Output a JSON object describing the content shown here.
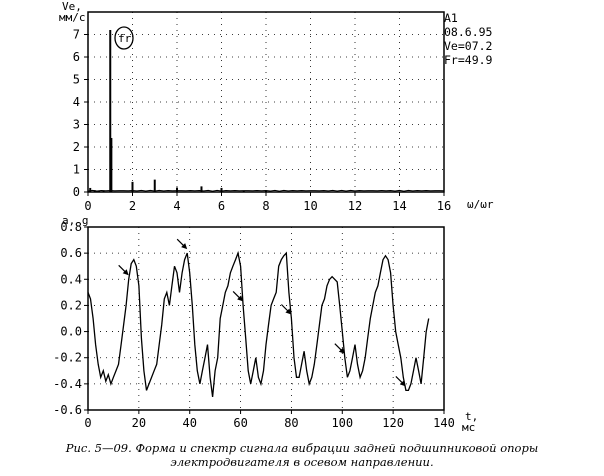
{
  "chart_data": [
    {
      "type": "bar",
      "title": "",
      "ylabel": "Ve, мм/с",
      "xlabel": "ω/ωr",
      "ylim": [
        0,
        8
      ],
      "xlim": [
        0,
        16
      ],
      "grid": true,
      "xticks": [
        "0",
        "2",
        "4",
        "6",
        "8",
        "10",
        "12",
        "14",
        "16"
      ],
      "yticks": [
        "0",
        "1",
        "2",
        "3",
        "4",
        "5",
        "6",
        "7"
      ],
      "x": [
        0.1,
        0.3,
        0.5,
        0.7,
        1.0,
        1.05,
        2.0,
        3.0,
        4.0,
        5.1,
        6.0,
        7.0,
        8.0
      ],
      "values": [
        0.18,
        0.08,
        0.05,
        0.06,
        7.2,
        2.4,
        0.45,
        0.55,
        0.2,
        0.25,
        0.18,
        0.05,
        0.05
      ],
      "peak_label": "fr",
      "info": {
        "id": "A1",
        "date": "08.6.95",
        "ve": "Ve=07.2",
        "fr": "Fr=49.9"
      }
    },
    {
      "type": "line",
      "title": "",
      "ylabel": "a, g",
      "xlabel": "t, мс",
      "ylim": [
        -0.6,
        0.8
      ],
      "xlim": [
        0,
        140
      ],
      "grid": true,
      "xticks": [
        "0",
        "20",
        "40",
        "60",
        "80",
        "100",
        "120",
        "140"
      ],
      "yticks": [
        "0.8",
        "0.6",
        "0.4",
        "0.2",
        "0.0",
        "-0.2",
        "-0.4",
        "-0.6"
      ],
      "x": [
        0,
        1,
        2,
        3,
        4,
        5,
        6,
        7,
        8,
        9,
        10,
        11,
        12,
        13,
        14,
        15,
        16,
        17,
        18,
        19,
        20,
        21,
        22,
        23,
        24,
        25,
        26,
        27,
        28,
        29,
        30,
        31,
        32,
        33,
        34,
        35,
        36,
        37,
        38,
        39,
        40,
        41,
        42,
        43,
        44,
        45,
        46,
        47,
        48,
        49,
        50,
        51,
        52,
        53,
        54,
        55,
        56,
        57,
        58,
        59,
        60,
        61,
        62,
        63,
        64,
        65,
        66,
        67,
        68,
        69,
        70,
        71,
        72,
        73,
        74,
        75,
        76,
        77,
        78,
        79,
        80,
        81,
        82,
        83,
        84,
        85,
        86,
        87,
        88,
        89,
        90,
        91,
        92,
        93,
        94,
        95,
        96,
        97,
        98,
        99,
        100,
        101,
        102,
        103,
        104,
        105,
        106,
        107,
        108,
        109,
        110,
        111,
        112,
        113,
        114,
        115,
        116,
        117,
        118,
        119,
        120,
        121,
        122,
        123,
        124,
        125,
        126,
        127,
        128,
        129,
        130,
        131,
        132,
        133,
        134
      ],
      "series": [
        {
          "values": [
            0.3,
            0.25,
            0.1,
            -0.1,
            -0.25,
            -0.35,
            -0.3,
            -0.38,
            -0.33,
            -0.4,
            -0.35,
            -0.3,
            -0.25,
            -0.1,
            0.05,
            0.2,
            0.4,
            0.52,
            0.55,
            0.5,
            0.35,
            -0.05,
            -0.3,
            -0.45,
            -0.4,
            -0.35,
            -0.3,
            -0.25,
            -0.1,
            0.05,
            0.25,
            0.3,
            0.2,
            0.35,
            0.5,
            0.45,
            0.3,
            0.45,
            0.55,
            0.6,
            0.45,
            0.2,
            -0.1,
            -0.3,
            -0.4,
            -0.3,
            -0.2,
            -0.1,
            -0.35,
            -0.5,
            -0.3,
            -0.2,
            0.1,
            0.2,
            0.3,
            0.35,
            0.45,
            0.5,
            0.55,
            0.6,
            0.5,
            0.2,
            -0.05,
            -0.3,
            -0.4,
            -0.3,
            -0.2,
            -0.35,
            -0.4,
            -0.3,
            -0.1,
            0.05,
            0.2,
            0.25,
            0.3,
            0.5,
            0.55,
            0.58,
            0.6,
            0.3,
            0.1,
            -0.2,
            -0.35,
            -0.35,
            -0.25,
            -0.15,
            -0.3,
            -0.4,
            -0.35,
            -0.25,
            -0.1,
            0.05,
            0.2,
            0.25,
            0.35,
            0.4,
            0.42,
            0.4,
            0.38,
            0.2,
            0.0,
            -0.2,
            -0.35,
            -0.3,
            -0.2,
            -0.1,
            -0.25,
            -0.35,
            -0.3,
            -0.2,
            -0.05,
            0.1,
            0.2,
            0.3,
            0.35,
            0.45,
            0.55,
            0.58,
            0.55,
            0.45,
            0.2,
            0.0,
            -0.1,
            -0.2,
            -0.35,
            -0.45,
            -0.45,
            -0.4,
            -0.3,
            -0.2,
            -0.3,
            -0.4,
            -0.2,
            0.0,
            0.1
          ]
        }
      ],
      "markers_at": [
        16,
        39,
        61,
        80,
        101,
        125
      ]
    }
  ],
  "caption": "Рис. 5—09. Форма и спектр сигнала вибрации задней подшипниковой опоры электродвигателя в осевом направлении."
}
